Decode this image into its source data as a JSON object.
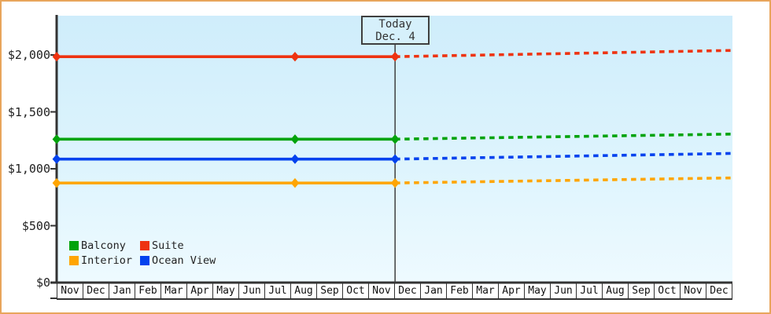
{
  "chart_data": {
    "type": "line",
    "title": "",
    "x_axis": {
      "month_labels": [
        "Nov",
        "Dec",
        "Jan",
        "Feb",
        "Mar",
        "Apr",
        "May",
        "Jun",
        "Jul",
        "Aug",
        "Sep",
        "Oct",
        "Nov",
        "Dec",
        "Jan",
        "Feb",
        "Mar",
        "Apr",
        "May",
        "Jun",
        "Jul",
        "Aug",
        "Sep",
        "Oct",
        "Nov",
        "Dec"
      ]
    },
    "y_axis": {
      "tick_labels": [
        "$0",
        "$500",
        "$1,000",
        "$1,500",
        "$2,000"
      ],
      "tick_values": [
        0,
        500,
        1000,
        1500,
        2000
      ],
      "range": [
        0,
        2345
      ],
      "grid": "off"
    },
    "today_marker": {
      "line1": "Today",
      "line2": "Dec. 4",
      "month_index": 13.02
    },
    "history_marker_month_indices": [
      0,
      9.17,
      13.02
    ],
    "forecast_style": "dashed",
    "series": [
      {
        "name": "Balcony",
        "color": "#02a30b",
        "history_price": 1260,
        "forecast_end_price": 1305
      },
      {
        "name": "Suite",
        "color": "#ee3311",
        "history_price": 1985,
        "forecast_end_price": 2040
      },
      {
        "name": "Interior",
        "color": "#ffa502",
        "history_price": 875,
        "forecast_end_price": 920
      },
      {
        "name": "Ocean View",
        "color": "#0442ee",
        "history_price": 1085,
        "forecast_end_price": 1135
      }
    ],
    "legend_position": "bottom-left-inside"
  },
  "colors": {
    "frame_border": "#e8a55c",
    "axis": "#333333",
    "plot_bg_top": "#cfedfb",
    "plot_bg_bottom": "#eefaff",
    "today_box_bg": "#d6f0fb"
  }
}
